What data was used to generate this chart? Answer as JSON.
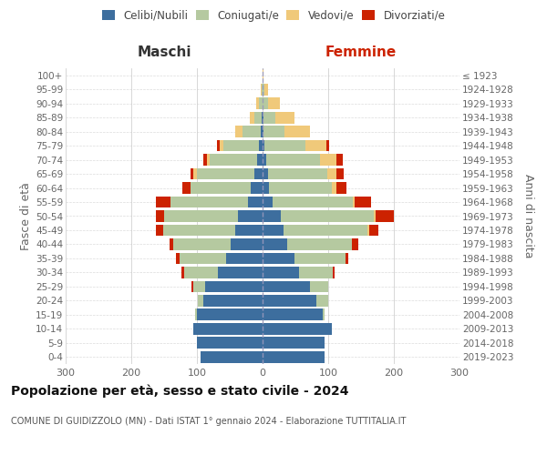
{
  "age_groups": [
    "0-4",
    "5-9",
    "10-14",
    "15-19",
    "20-24",
    "25-29",
    "30-34",
    "35-39",
    "40-44",
    "45-49",
    "50-54",
    "55-59",
    "60-64",
    "65-69",
    "70-74",
    "75-79",
    "80-84",
    "85-89",
    "90-94",
    "95-99",
    "100+"
  ],
  "birth_years": [
    "2019-2023",
    "2014-2018",
    "2009-2013",
    "2004-2008",
    "1999-2003",
    "1994-1998",
    "1989-1993",
    "1984-1988",
    "1979-1983",
    "1974-1978",
    "1969-1973",
    "1964-1968",
    "1959-1963",
    "1954-1958",
    "1949-1953",
    "1944-1948",
    "1939-1943",
    "1934-1938",
    "1929-1933",
    "1924-1928",
    "≤ 1923"
  ],
  "colors": {
    "celibe": "#3d6e9e",
    "coniugato": "#b5c9a0",
    "vedovo": "#f0c97a",
    "divorziato": "#cc2200"
  },
  "maschi_celibe": [
    95,
    100,
    105,
    100,
    90,
    88,
    68,
    55,
    48,
    42,
    38,
    22,
    18,
    12,
    8,
    5,
    3,
    2,
    0,
    0,
    0
  ],
  "maschi_coniugato": [
    0,
    0,
    0,
    3,
    8,
    18,
    52,
    72,
    88,
    110,
    112,
    118,
    92,
    88,
    72,
    55,
    28,
    10,
    5,
    1,
    0
  ],
  "maschi_vedovo": [
    0,
    0,
    0,
    0,
    0,
    0,
    0,
    0,
    0,
    0,
    0,
    0,
    0,
    5,
    5,
    5,
    10,
    8,
    5,
    2,
    0
  ],
  "maschi_divorziato": [
    0,
    0,
    0,
    0,
    0,
    3,
    3,
    5,
    5,
    10,
    12,
    22,
    12,
    5,
    5,
    5,
    0,
    0,
    0,
    0,
    0
  ],
  "femmine_celibe": [
    95,
    95,
    105,
    92,
    82,
    72,
    55,
    48,
    38,
    32,
    28,
    15,
    10,
    8,
    5,
    3,
    2,
    2,
    0,
    0,
    0
  ],
  "femmine_coniugato": [
    0,
    0,
    0,
    3,
    18,
    28,
    52,
    78,
    98,
    128,
    142,
    122,
    95,
    90,
    82,
    62,
    32,
    18,
    8,
    3,
    0
  ],
  "femmine_vedovo": [
    0,
    0,
    0,
    0,
    0,
    0,
    0,
    0,
    0,
    2,
    2,
    3,
    8,
    15,
    25,
    32,
    38,
    28,
    18,
    5,
    2
  ],
  "femmine_divorziato": [
    0,
    0,
    0,
    0,
    0,
    0,
    3,
    5,
    10,
    15,
    28,
    25,
    15,
    10,
    10,
    5,
    0,
    0,
    0,
    0,
    0
  ],
  "xlim": 300,
  "title": "Popolazione per età, sesso e stato civile - 2024",
  "subtitle": "COMUNE DI GUIDIZZOLO (MN) - Dati ISTAT 1° gennaio 2024 - Elaborazione TUTTITALIA.IT",
  "ylabel_left": "Fasce di età",
  "ylabel_right": "Anni di nascita",
  "header_maschi": "Maschi",
  "header_femmine": "Femmine",
  "bg_color": "#ffffff",
  "grid_color": "#cccccc",
  "bar_height": 0.82,
  "legend_labels": [
    "Celibi/Nubili",
    "Coniugati/e",
    "Vedovi/e",
    "Divorziati/e"
  ]
}
